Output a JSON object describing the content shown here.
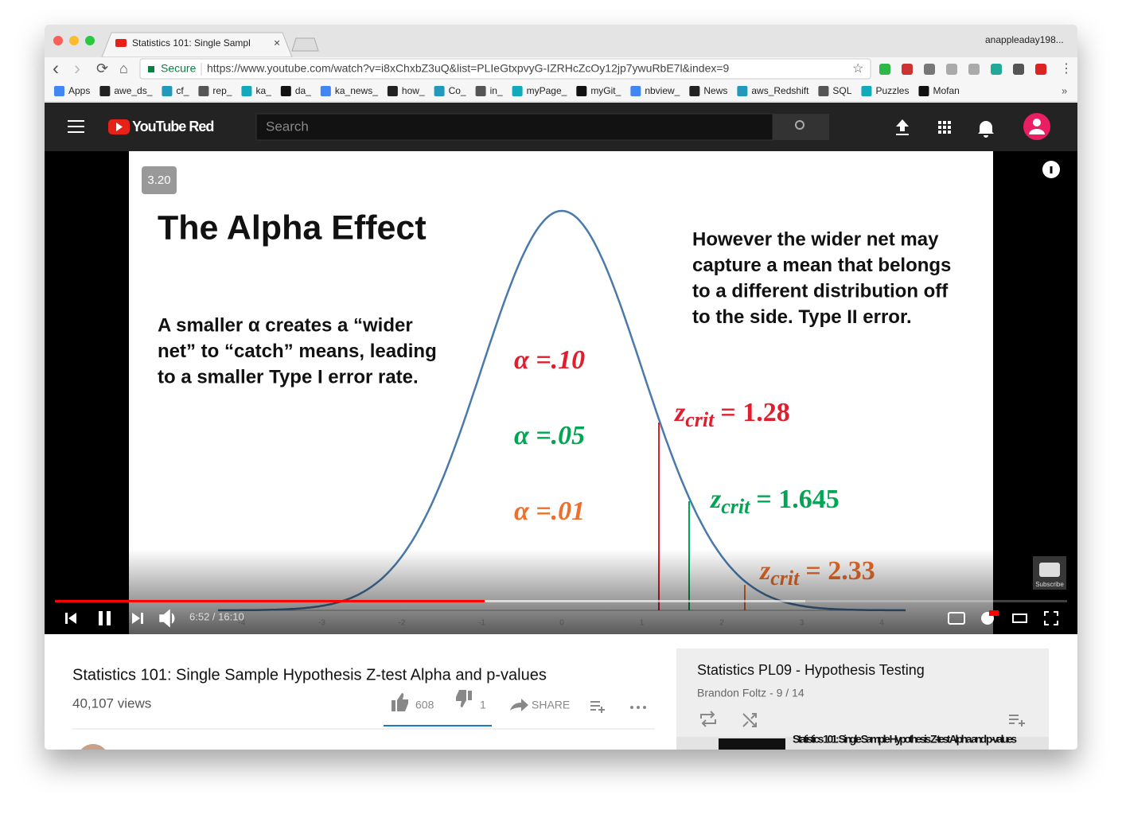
{
  "browser": {
    "tab_title": "Statistics 101: Single Sampl",
    "user": "anappleaday198...",
    "secure": "Secure",
    "url": "https://www.youtube.com/watch?v=i8xChxbZ3uQ&list=PLIeGtxpvyG-IZRHcZcOy12jp7ywuRbE7l&index=9",
    "bookmarks": [
      "Apps",
      "awe_ds_",
      "cf_",
      "rep_",
      "ka_",
      "da_",
      "ka_news_",
      "how_",
      "Co_",
      "in_",
      "myPage_",
      "myGit_",
      "nbview_",
      "News",
      "aws_Redshift",
      "SQL",
      "Puzzles",
      "Mofan"
    ]
  },
  "youtube": {
    "logo": "YouTube Red",
    "search": "Search"
  },
  "slide": {
    "number": "3.20",
    "title": "The Alpha Effect",
    "left_text": [
      "A smaller α creates a “wider",
      "net” to “catch” means, leading",
      "to a smaller Type I error rate."
    ],
    "right_text": [
      "However the wider net may",
      "capture a mean that belongs",
      "to a different distribution off",
      "to the side. Type II error."
    ],
    "alphas": [
      "α =.10",
      "α =.05",
      "α =.01"
    ],
    "zcrits": [
      {
        "var": "z",
        "sub": "crit",
        "rest": "= 1.28"
      },
      {
        "var": "z",
        "sub": "crit",
        "rest": "= 1.645"
      },
      {
        "var": "z",
        "sub": "crit",
        "rest": "= 2.33"
      }
    ],
    "axis_ticks": [
      "-4",
      "-3",
      "-2",
      "-1",
      "0",
      "1",
      "2",
      "3",
      "4"
    ]
  },
  "player": {
    "time": "6:52 / 16:10",
    "subscribe": "Subscribe"
  },
  "video": {
    "title": "Statistics 101: Single Sample Hypothesis Z-test Alpha and p-values",
    "views": "40,107 views",
    "likes": "608",
    "dislikes": "1",
    "share": "SHARE"
  },
  "playlist": {
    "title": "Statistics PL09 - Hypothesis Testing",
    "meta": "Brandon Foltz - 9 / 14",
    "next_item": "Statistics 101: Single Sample Hypothesis Z-test Alpha and p-values"
  }
}
